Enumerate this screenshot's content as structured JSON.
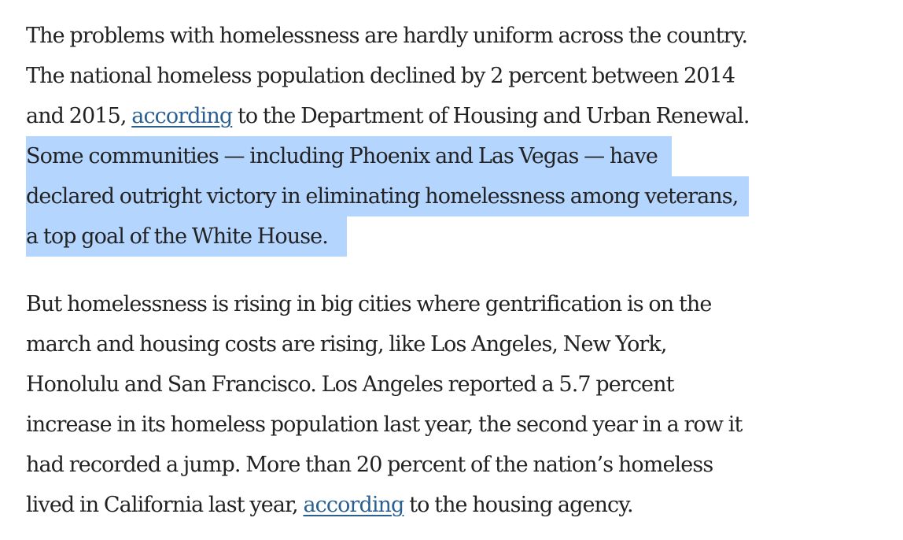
{
  "article": {
    "paragraph1": {
      "line1": "The problems with homelessness are hardly uniform across the country.",
      "line2": "The national homeless population declined by 2 percent between 2014",
      "line3_before": "and 2015,",
      "line3_link": "according",
      "line3_after": "to the Department of Housing and Urban Renewal.",
      "highlight_line1": "Some communities — including Phoenix and Las Vegas — have",
      "highlight_line2": "declared outright victory in eliminating homelessness among veterans,",
      "highlight_line3": "a top goal of the White House."
    },
    "paragraph2": {
      "line1": "But homelessness is rising in big cities where gentrification is on the",
      "line2": "march and housing costs are rising, like Los Angeles, New York,",
      "line3": "Honolulu and San Francisco. Los Angeles reported a 5.7 percent",
      "line4": "increase in its homeless population last year, the second year in a row it",
      "line5": "had recorded a jump. More than 20 percent of the nation’s homeless",
      "line6_before": "lived in California last year,",
      "line6_link": "according",
      "line6_after": "to the housing agency."
    }
  },
  "colors": {
    "text": "#222222",
    "link": "#2a5f8f",
    "selection_highlight": "#b4d5fe"
  }
}
